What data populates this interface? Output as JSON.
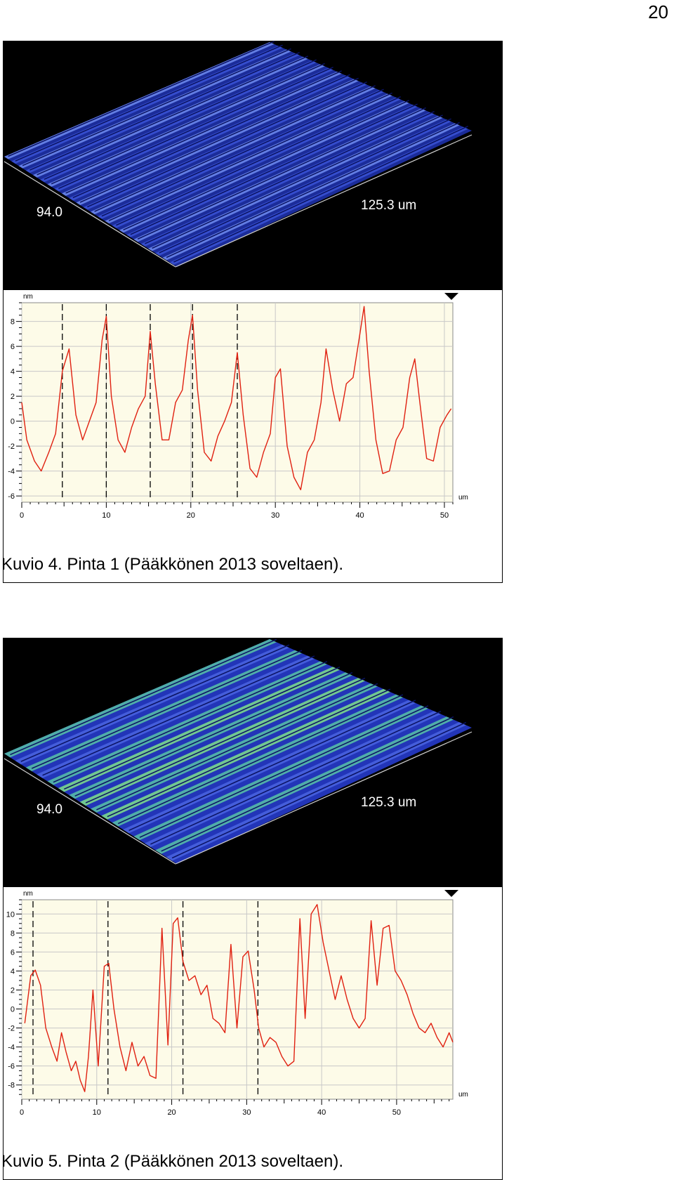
{
  "page_number": "20",
  "figures": [
    {
      "id": "fig1",
      "caption": "Kuvio 4. Pinta 1  (Pääkkönen 2013 soveltaen).",
      "render": {
        "label_left": "94.0",
        "label_right": "125.3 um",
        "ridges": 24,
        "colors": [
          "#1b2c9a",
          "#3a53d6",
          "#6f8cf0",
          "#2fa58a"
        ]
      },
      "chart_data": {
        "type": "line",
        "ylabel": "nm",
        "xlabel": "um",
        "xlim": [
          0,
          51
        ],
        "ylim": [
          -6.5,
          9.5
        ],
        "xticks": [
          0,
          10,
          20,
          30,
          40,
          50
        ],
        "yticks": [
          -6,
          -4,
          -2,
          0,
          2,
          4,
          6,
          8
        ],
        "markers": [
          4.8,
          10,
          15.2,
          20.2,
          25.5
        ],
        "series": [
          {
            "color": "#e02010",
            "x": [
              0,
              0.6,
              1.5,
              2.3,
              3.2,
              4,
              4.8,
              5.6,
              6.4,
              7.2,
              8,
              8.8,
              9.5,
              10,
              10.6,
              11.4,
              12.2,
              13,
              13.8,
              14.6,
              15.2,
              15.8,
              16.6,
              17.4,
              18.2,
              19,
              19.7,
              20.2,
              20.8,
              21.6,
              22.4,
              23.2,
              24,
              24.8,
              25.5,
              26.2,
              27,
              27.8,
              28.6,
              29.4,
              30,
              30.6,
              31.4,
              32.2,
              33,
              33.8,
              34.6,
              35.4,
              36,
              36.8,
              37.6,
              38.4,
              39.2,
              40,
              40.5,
              41.1,
              41.9,
              42.7,
              43.5,
              44.3,
              45.1,
              45.9,
              46.5,
              47.1,
              47.9,
              48.7,
              49.5,
              50.3,
              50.8
            ],
            "y": [
              1.5,
              -1.5,
              -3.2,
              -4,
              -2.5,
              -1,
              4,
              5.8,
              0.5,
              -1.5,
              0,
              1.5,
              6.5,
              8.4,
              2,
              -1.5,
              -2.5,
              -0.5,
              1,
              2,
              7.2,
              3,
              -1.5,
              -1.5,
              1.5,
              2.5,
              6.5,
              8.5,
              2.5,
              -2.5,
              -3.2,
              -1.2,
              0,
              1.5,
              5.5,
              0.5,
              -3.8,
              -4.5,
              -2.5,
              -1,
              3.5,
              4.2,
              -2,
              -4.5,
              -5.5,
              -2.5,
              -1.5,
              1.5,
              5.8,
              2.5,
              0,
              3,
              3.5,
              7,
              9.2,
              4,
              -1.5,
              -4.2,
              -4,
              -1.5,
              -0.5,
              3.5,
              5,
              1.5,
              -3,
              -3.2,
              -0.5,
              0.5,
              1
            ]
          }
        ]
      }
    },
    {
      "id": "fig2",
      "caption": "Kuvio 5. Pinta 2  (Pääkkönen 2013 soveltaen).",
      "render": {
        "label_left": "94.0",
        "label_right": "125.3 um",
        "ridges": 16,
        "colors": [
          "#2235b8",
          "#4a64e0",
          "#58c2a6",
          "#7fe08a"
        ]
      },
      "chart_data": {
        "type": "line",
        "ylabel": "nm",
        "xlabel": "um",
        "xlim": [
          0,
          57.5
        ],
        "ylim": [
          -9.5,
          11.5
        ],
        "xticks": [
          0,
          10,
          20,
          30,
          40,
          50
        ],
        "yticks": [
          -8,
          -6,
          -4,
          -2,
          0,
          2,
          4,
          6,
          8,
          10
        ],
        "markers": [
          1.5,
          11.5,
          21.5,
          31.5
        ],
        "series": [
          {
            "color": "#e02010",
            "x": [
              0.4,
              1.2,
              1.8,
              2.5,
              3.2,
              4,
              4.7,
              5.3,
              5.9,
              6.6,
              7.2,
              7.8,
              8.4,
              8.9,
              9.5,
              10.2,
              11,
              11.6,
              12.3,
              13.1,
              13.9,
              14.7,
              15.5,
              16.3,
              17.1,
              17.9,
              18.7,
              19.5,
              20.2,
              20.8,
              21.5,
              22.3,
              23.1,
              23.9,
              24.7,
              25.5,
              26.3,
              27.1,
              27.9,
              28.7,
              29.5,
              30.2,
              31,
              31.6,
              32.3,
              33.1,
              33.9,
              34.7,
              35.5,
              36.3,
              37.1,
              37.8,
              38.6,
              39.4,
              40.2,
              41,
              41.8,
              42.6,
              43.4,
              44.2,
              45,
              45.8,
              46.6,
              47.4,
              48.2,
              49,
              49.8,
              50.6,
              51.4,
              52.2,
              53,
              53.8,
              54.6,
              55.4,
              56.2,
              57,
              57.5
            ],
            "y": [
              -1.5,
              3.5,
              4.1,
              2.5,
              -2,
              -4,
              -5.5,
              -2.5,
              -4.5,
              -6.5,
              -5.5,
              -7.5,
              -8.7,
              -5,
              2,
              -6,
              4.5,
              4.8,
              0,
              -4,
              -6.5,
              -3.5,
              -6,
              -5,
              -7,
              -7.3,
              8.5,
              -3.8,
              9,
              9.6,
              5,
              3,
              3.5,
              1.5,
              2.5,
              -1,
              -1.5,
              -2.5,
              6.8,
              -2,
              5.5,
              6.1,
              2,
              -2,
              -4,
              -3,
              -3.5,
              -5,
              -6,
              -5.5,
              9.5,
              -1,
              10,
              11,
              7,
              4,
              1,
              3.5,
              1,
              -1,
              -2,
              -1,
              9.3,
              2.5,
              8.5,
              8.8,
              4,
              3,
              1.5,
              -0.5,
              -2,
              -2.5,
              -1.5,
              -3,
              -4,
              -2.5,
              -3.5
            ]
          }
        ]
      }
    }
  ]
}
